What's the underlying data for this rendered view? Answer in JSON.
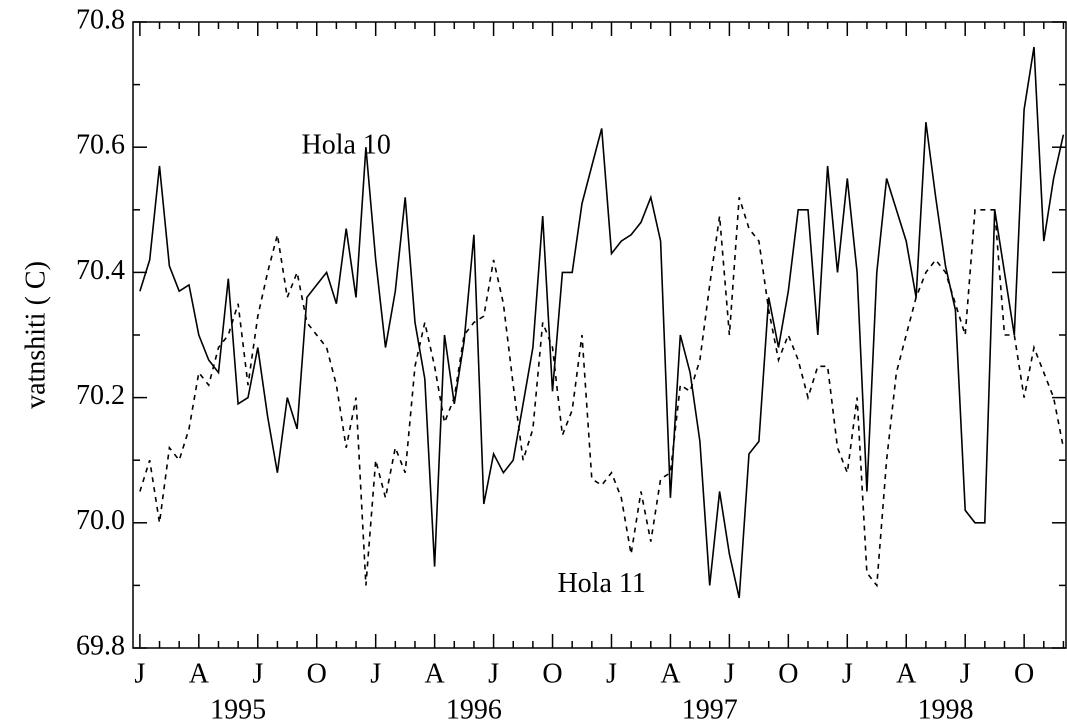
{
  "chart_data": {
    "type": "line",
    "y_label": "vatnshiti ( C)",
    "x": [
      0,
      0.5,
      1,
      1.5,
      2,
      2.5,
      3,
      3.5,
      4,
      4.5,
      5,
      5.5,
      6,
      6.5,
      7,
      7.5,
      8,
      8.5,
      9,
      9.5,
      10,
      10.5,
      11,
      11.5,
      12,
      12.5,
      13,
      13.5,
      14,
      14.5,
      15,
      15.5,
      16,
      16.5,
      17,
      17.5,
      18,
      18.5,
      19,
      19.5,
      20,
      20.5,
      21,
      21.5,
      22,
      22.5,
      23,
      23.5,
      24,
      24.5,
      25,
      25.5,
      26,
      26.5,
      27,
      27.5,
      28,
      28.5,
      29,
      29.5,
      30,
      30.5,
      31,
      31.5,
      32,
      32.5,
      33,
      33.5,
      34,
      34.5,
      35,
      35.5,
      36,
      36.5,
      37,
      37.5,
      38,
      38.5,
      39,
      39.5,
      40,
      40.5,
      41,
      41.5,
      42,
      42.5,
      43,
      43.5,
      44,
      44.5,
      45,
      45.5,
      46,
      46.5,
      47
    ],
    "series": [
      {
        "name": "Hola 10",
        "color": "#000000",
        "dash": "none",
        "values": [
          70.37,
          70.42,
          70.57,
          70.41,
          70.37,
          70.38,
          70.3,
          70.26,
          70.24,
          70.39,
          70.19,
          70.2,
          70.28,
          70.17,
          70.08,
          70.2,
          70.15,
          70.36,
          70.38,
          70.4,
          70.35,
          70.47,
          70.36,
          70.6,
          70.42,
          70.28,
          70.37,
          70.52,
          70.32,
          70.23,
          69.93,
          70.3,
          70.19,
          70.29,
          70.46,
          70.03,
          70.11,
          70.08,
          70.1,
          70.19,
          70.28,
          70.49,
          70.21,
          70.4,
          70.4,
          70.51,
          70.57,
          70.63,
          70.43,
          70.45,
          70.46,
          70.48,
          70.52,
          70.45,
          70.04,
          70.3,
          70.24,
          70.13,
          69.9,
          70.05,
          69.95,
          69.88,
          70.11,
          70.13,
          70.36,
          70.28,
          70.37,
          70.5,
          70.5,
          70.3,
          70.57,
          70.4,
          70.55,
          70.4,
          70.05,
          70.4,
          70.55,
          70.5,
          70.45,
          70.36,
          70.64,
          70.52,
          70.41,
          70.34,
          70.02,
          70.0,
          70.0,
          70.5,
          70.4,
          70.3,
          70.66,
          70.76,
          70.45,
          70.55,
          70.62
        ]
      },
      {
        "name": "Hola 11",
        "color": "#000000",
        "dash": "5,5",
        "values": [
          70.05,
          70.1,
          70.0,
          70.12,
          70.1,
          70.15,
          70.24,
          70.22,
          70.28,
          70.3,
          70.35,
          70.22,
          70.33,
          70.4,
          70.46,
          70.36,
          70.4,
          70.32,
          70.3,
          70.28,
          70.22,
          70.12,
          70.2,
          69.9,
          70.1,
          70.04,
          70.12,
          70.08,
          70.25,
          70.32,
          70.25,
          70.16,
          70.2,
          70.3,
          70.32,
          70.33,
          70.42,
          70.35,
          70.22,
          70.1,
          70.15,
          70.32,
          70.28,
          70.14,
          70.18,
          70.3,
          70.07,
          70.06,
          70.08,
          70.04,
          69.95,
          70.05,
          69.97,
          70.07,
          70.08,
          70.22,
          70.21,
          70.26,
          70.38,
          70.49,
          70.3,
          70.52,
          70.47,
          70.45,
          70.34,
          70.26,
          70.3,
          70.26,
          70.2,
          70.25,
          70.25,
          70.12,
          70.08,
          70.2,
          69.92,
          69.9,
          70.1,
          70.24,
          70.3,
          70.36,
          70.4,
          70.42,
          70.4,
          70.35,
          70.3,
          70.5,
          70.5,
          70.5,
          70.3,
          70.3,
          70.2,
          70.28,
          70.24,
          70.2,
          70.12
        ]
      }
    ],
    "xlim": [
      -0.35,
      47.13
    ],
    "ylim": [
      69.8,
      70.8
    ],
    "yticks": [
      {
        "value": 69.8,
        "label": "69.8"
      },
      {
        "value": 70.0,
        "label": "70.0"
      },
      {
        "value": 70.2,
        "label": "70.2"
      },
      {
        "value": 70.4,
        "label": "70.4"
      },
      {
        "value": 70.6,
        "label": "70.6"
      },
      {
        "value": 70.8,
        "label": "70.8"
      }
    ],
    "yminorticks": [
      69.9,
      70.1,
      70.3,
      70.5,
      70.7
    ],
    "xticks": [
      {
        "value": 0,
        "label": "J"
      },
      {
        "value": 3,
        "label": "A"
      },
      {
        "value": 6,
        "label": "J"
      },
      {
        "value": 9,
        "label": "O"
      },
      {
        "value": 12,
        "label": "J"
      },
      {
        "value": 15,
        "label": "A"
      },
      {
        "value": 18,
        "label": "J"
      },
      {
        "value": 21,
        "label": "O"
      },
      {
        "value": 24,
        "label": "J"
      },
      {
        "value": 27,
        "label": "A"
      },
      {
        "value": 30,
        "label": "J"
      },
      {
        "value": 33,
        "label": "O"
      },
      {
        "value": 36,
        "label": "J"
      },
      {
        "value": 39,
        "label": "A"
      },
      {
        "value": 42,
        "label": "J"
      },
      {
        "value": 45,
        "label": "O"
      }
    ],
    "xminorticks": [
      1,
      2,
      4,
      5,
      7,
      8,
      10,
      11,
      13,
      14,
      16,
      17,
      19,
      20,
      22,
      23,
      25,
      26,
      28,
      29,
      31,
      32,
      34,
      35,
      37,
      38,
      40,
      41,
      43,
      44,
      46,
      47
    ],
    "year_labels": [
      {
        "value": 5,
        "label": "1995"
      },
      {
        "value": 17,
        "label": "1996"
      },
      {
        "value": 29,
        "label": "1997"
      },
      {
        "value": 41,
        "label": "1998"
      }
    ],
    "annotations": [
      {
        "series": 0,
        "x": 10.5,
        "y": 70.6
      },
      {
        "series": 1,
        "x": 23.5,
        "y": 69.9
      }
    ]
  }
}
